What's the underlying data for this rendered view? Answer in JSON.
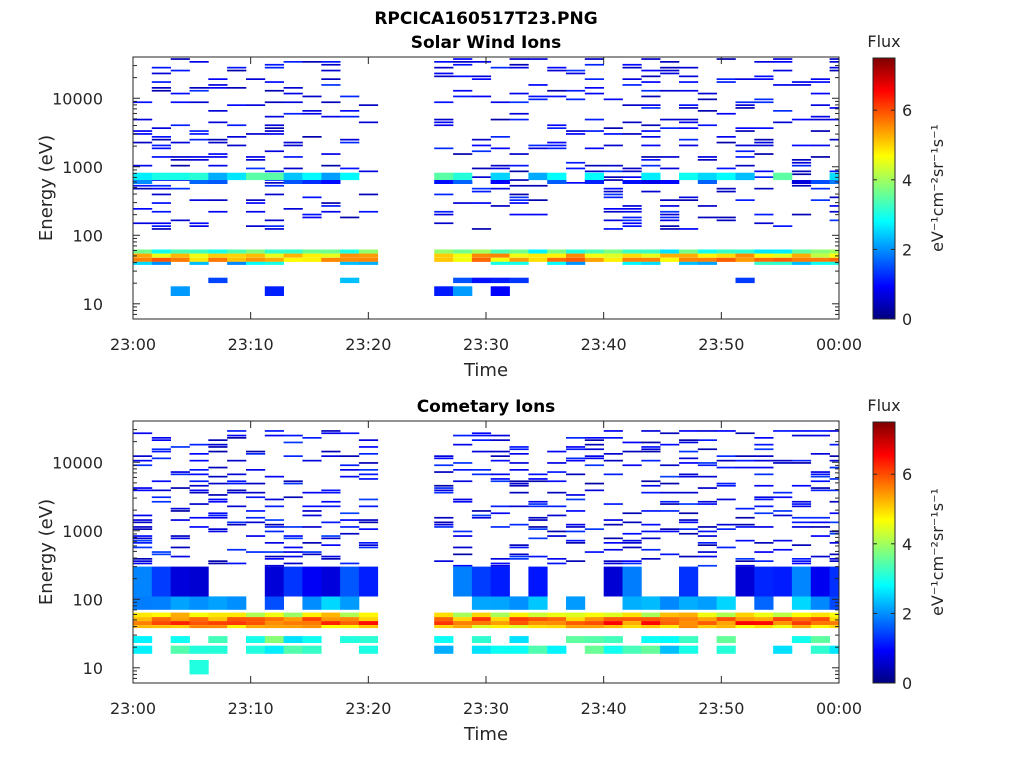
{
  "figure_title": "RPCICA160517T23.PNG",
  "colors": {
    "colormap": [
      "#00007f",
      "#0000ff",
      "#007fff",
      "#00ffff",
      "#7fff7f",
      "#ffff00",
      "#ff7f00",
      "#ff0000",
      "#7f0000"
    ],
    "axis": "#262626",
    "background": "#ffffff"
  },
  "chart_data": [
    {
      "type": "heatmap",
      "title": "Solar Wind Ions",
      "xlabel": "Time",
      "ylabel": "Energy (eV)",
      "x_ticks": [
        "23:00",
        "23:10",
        "23:20",
        "23:30",
        "23:40",
        "23:50",
        "00:00"
      ],
      "xlim_minutes": [
        0,
        60
      ],
      "y_scale": "log",
      "ylim": [
        6,
        40000
      ],
      "y_ticks": [
        10,
        100,
        1000,
        10000
      ],
      "y_tick_labels": [
        "10",
        "100",
        "1000",
        "10000"
      ],
      "data_gap_minutes": [
        21.8,
        24.8
      ],
      "colorbar": {
        "title": "Flux",
        "label": "eV⁻¹cm⁻²sr⁻¹s⁻¹",
        "range": [
          0,
          7.5
        ],
        "ticks": [
          0,
          2,
          4,
          6
        ]
      },
      "bands": [
        {
          "energy": [
            54,
            62
          ],
          "flux": 3.3,
          "coverage": "full"
        },
        {
          "energy": [
            47,
            54
          ],
          "flux": 4.9,
          "coverage": "full"
        },
        {
          "energy": [
            41,
            47
          ],
          "flux": 5.3,
          "coverage": "full"
        },
        {
          "energy": [
            37,
            41
          ],
          "flux": 2.6,
          "coverage": "partial"
        },
        {
          "energy": [
            640,
            820
          ],
          "flux": 2.8,
          "coverage": "partial"
        },
        {
          "energy": [
            560,
            640
          ],
          "flux": 1.4,
          "coverage": "partial"
        },
        {
          "energy": [
            20,
            24
          ],
          "flux": 1.7,
          "coverage": "sparse"
        },
        {
          "energy": [
            13,
            18
          ],
          "flux": 1.6,
          "coverage": "sparse"
        }
      ],
      "background_flux_range": [
        0.3,
        1.3
      ],
      "background_energy_range": [
        120,
        40000
      ],
      "background_density": 0.2
    },
    {
      "type": "heatmap",
      "title": "Cometary Ions",
      "xlabel": "Time",
      "ylabel": "Energy (eV)",
      "x_ticks": [
        "23:00",
        "23:10",
        "23:20",
        "23:30",
        "23:40",
        "23:50",
        "00:00"
      ],
      "xlim_minutes": [
        0,
        60
      ],
      "y_scale": "log",
      "ylim": [
        6,
        40000
      ],
      "y_ticks": [
        10,
        100,
        1000,
        10000
      ],
      "y_tick_labels": [
        "10",
        "100",
        "1000",
        "10000"
      ],
      "data_gap_minutes": [
        21.8,
        24.8
      ],
      "colorbar": {
        "title": "Flux",
        "label": "eV⁻¹cm⁻²sr⁻¹s⁻¹",
        "range": [
          0,
          7.5
        ],
        "ticks": [
          0,
          2,
          4,
          6
        ]
      },
      "bands": [
        {
          "energy": [
            55,
            64
          ],
          "flux": 4.6,
          "coverage": "full"
        },
        {
          "energy": [
            48,
            55
          ],
          "flux": 5.6,
          "coverage": "full"
        },
        {
          "energy": [
            42,
            48
          ],
          "flux": 5.9,
          "coverage": "full"
        },
        {
          "energy": [
            38,
            42
          ],
          "flux": 5.0,
          "coverage": "full"
        },
        {
          "energy": [
            23,
            29
          ],
          "flux": 3.3,
          "coverage": "partial"
        },
        {
          "energy": [
            16,
            21
          ],
          "flux": 2.9,
          "coverage": "partial"
        },
        {
          "energy": [
            8,
            13
          ],
          "flux": 2.6,
          "coverage": "sparse"
        },
        {
          "energy": [
            70,
            110
          ],
          "flux": 2.0,
          "coverage": "partial"
        },
        {
          "energy": [
            110,
            300
          ],
          "flux": 1.3,
          "coverage": "partial"
        }
      ],
      "background_flux_range": [
        0.3,
        1.4
      ],
      "background_energy_range": [
        300,
        30000
      ],
      "background_density": 0.22
    }
  ]
}
